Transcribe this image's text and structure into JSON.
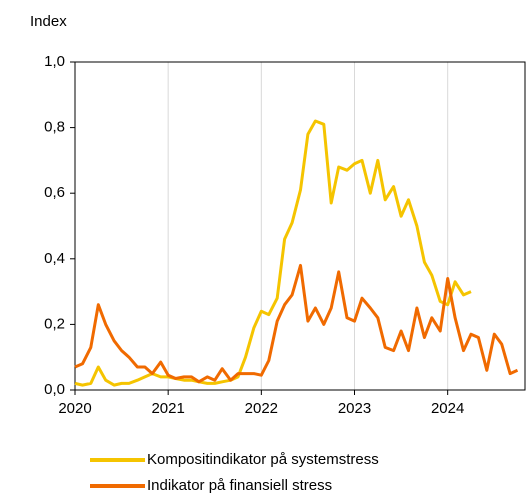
{
  "chart_data": {
    "type": "line",
    "y_label": "Index",
    "xlim": [
      2020,
      2024.83
    ],
    "xticks": [
      2020,
      2021,
      2022,
      2023,
      2024
    ],
    "ylim": [
      0,
      1
    ],
    "yticks": [
      {
        "value": 0,
        "label": "0,0"
      },
      {
        "value": 0.2,
        "label": "0,2"
      },
      {
        "value": 0.4,
        "label": "0,4"
      },
      {
        "value": 0.6,
        "label": "0,6"
      },
      {
        "value": 0.8,
        "label": "0,8"
      },
      {
        "value": 1,
        "label": "1,0"
      }
    ],
    "grid": true,
    "legend": "bottom",
    "series": [
      {
        "name": "Kompositindikator på systemstress",
        "color": "#f5c400",
        "x": [
          2020,
          2020.08,
          2020.17,
          2020.25,
          2020.33,
          2020.42,
          2020.5,
          2020.58,
          2020.67,
          2020.75,
          2020.83,
          2020.92,
          2021,
          2021.08,
          2021.17,
          2021.25,
          2021.33,
          2021.42,
          2021.5,
          2021.58,
          2021.67,
          2021.75,
          2021.83,
          2021.92,
          2022,
          2022.08,
          2022.17,
          2022.25,
          2022.33,
          2022.42,
          2022.5,
          2022.58,
          2022.67,
          2022.75,
          2022.83,
          2022.92,
          2023,
          2023.08,
          2023.17,
          2023.25,
          2023.33,
          2023.42,
          2023.5,
          2023.58,
          2023.67,
          2023.75,
          2023.83,
          2023.92,
          2024,
          2024.08,
          2024.17,
          2024.25
        ],
        "values": [
          0.02,
          0.015,
          0.02,
          0.07,
          0.03,
          0.015,
          0.02,
          0.02,
          0.03,
          0.04,
          0.05,
          0.04,
          0.04,
          0.035,
          0.03,
          0.03,
          0.025,
          0.02,
          0.02,
          0.025,
          0.03,
          0.04,
          0.1,
          0.19,
          0.24,
          0.23,
          0.28,
          0.46,
          0.51,
          0.61,
          0.78,
          0.82,
          0.81,
          0.57,
          0.68,
          0.67,
          0.69,
          0.7,
          0.6,
          0.7,
          0.58,
          0.62,
          0.53,
          0.58,
          0.5,
          0.39,
          0.35,
          0.27,
          0.26,
          0.33,
          0.29,
          0.3
        ]
      },
      {
        "name": "Indikator på finansiell stress",
        "color": "#f06a00",
        "x": [
          2020,
          2020.08,
          2020.17,
          2020.25,
          2020.33,
          2020.42,
          2020.5,
          2020.58,
          2020.67,
          2020.75,
          2020.83,
          2020.92,
          2021,
          2021.08,
          2021.17,
          2021.25,
          2021.33,
          2021.42,
          2021.5,
          2021.58,
          2021.67,
          2021.75,
          2021.83,
          2021.92,
          2022,
          2022.08,
          2022.17,
          2022.25,
          2022.33,
          2022.42,
          2022.5,
          2022.58,
          2022.67,
          2022.75,
          2022.83,
          2022.92,
          2023,
          2023.08,
          2023.17,
          2023.25,
          2023.33,
          2023.42,
          2023.5,
          2023.58,
          2023.67,
          2023.75,
          2023.83,
          2023.92,
          2024,
          2024.08,
          2024.17,
          2024.25,
          2024.33,
          2024.42,
          2024.5,
          2024.58,
          2024.67,
          2024.75
        ],
        "values": [
          0.07,
          0.08,
          0.13,
          0.26,
          0.2,
          0.15,
          0.12,
          0.1,
          0.07,
          0.07,
          0.05,
          0.085,
          0.045,
          0.035,
          0.04,
          0.04,
          0.025,
          0.04,
          0.03,
          0.065,
          0.03,
          0.05,
          0.05,
          0.05,
          0.045,
          0.09,
          0.21,
          0.26,
          0.29,
          0.38,
          0.21,
          0.25,
          0.2,
          0.25,
          0.36,
          0.22,
          0.21,
          0.28,
          0.25,
          0.22,
          0.13,
          0.12,
          0.18,
          0.12,
          0.25,
          0.16,
          0.22,
          0.18,
          0.34,
          0.22,
          0.12,
          0.17,
          0.16,
          0.06,
          0.17,
          0.14,
          0.05,
          0.06
        ]
      }
    ]
  }
}
